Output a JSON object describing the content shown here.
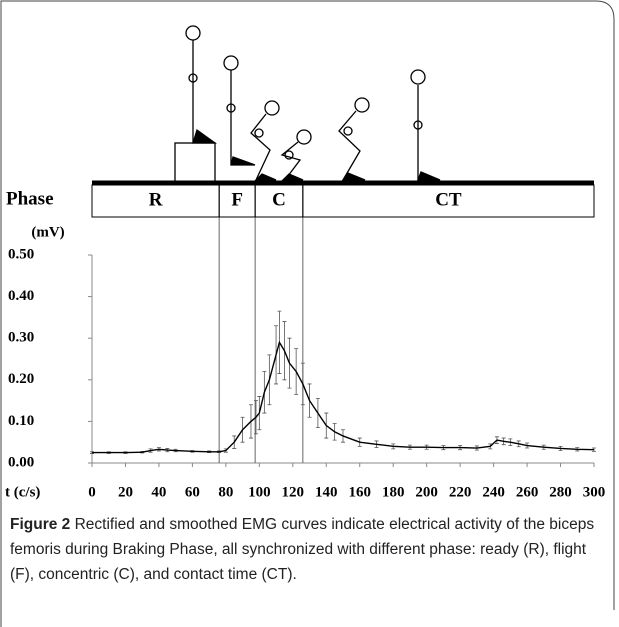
{
  "chart_data": {
    "type": "line",
    "ylabel": "(mV)",
    "xlabel": "t (c/s)",
    "phase_label": "Phase",
    "phases": [
      {
        "label": "R",
        "end": 76
      },
      {
        "label": "F",
        "end": 97.5
      },
      {
        "label": "C",
        "end": 126
      },
      {
        "label": "CT",
        "end": 300
      }
    ],
    "x": [
      0,
      10,
      20,
      30,
      35,
      40,
      45,
      50,
      60,
      70,
      76,
      80,
      85,
      90,
      95,
      98,
      100,
      103,
      106,
      110,
      112,
      115,
      118,
      122,
      126,
      130,
      135,
      140,
      145,
      150,
      160,
      170,
      180,
      190,
      200,
      210,
      220,
      230,
      238,
      242,
      246,
      250,
      255,
      260,
      270,
      280,
      290,
      300
    ],
    "values": [
      0.025,
      0.025,
      0.025,
      0.026,
      0.03,
      0.033,
      0.031,
      0.03,
      0.028,
      0.027,
      0.027,
      0.03,
      0.05,
      0.08,
      0.1,
      0.11,
      0.12,
      0.17,
      0.2,
      0.26,
      0.29,
      0.27,
      0.24,
      0.22,
      0.19,
      0.15,
      0.12,
      0.09,
      0.075,
      0.065,
      0.05,
      0.045,
      0.04,
      0.038,
      0.038,
      0.037,
      0.037,
      0.036,
      0.04,
      0.055,
      0.052,
      0.05,
      0.046,
      0.042,
      0.038,
      0.035,
      0.033,
      0.032
    ],
    "errors": [
      0.002,
      0.002,
      0.002,
      0.002,
      0.004,
      0.004,
      0.004,
      0.003,
      0.002,
      0.002,
      0.002,
      0.004,
      0.015,
      0.03,
      0.04,
      0.04,
      0.04,
      0.05,
      0.06,
      0.07,
      0.075,
      0.07,
      0.06,
      0.055,
      0.05,
      0.04,
      0.035,
      0.03,
      0.02,
      0.015,
      0.01,
      0.008,
      0.006,
      0.005,
      0.005,
      0.005,
      0.005,
      0.005,
      0.006,
      0.008,
      0.008,
      0.008,
      0.007,
      0.006,
      0.005,
      0.005,
      0.004,
      0.004
    ],
    "color": "#000000",
    "xlim": [
      0,
      300
    ],
    "xticks": [
      0,
      20,
      40,
      60,
      80,
      100,
      120,
      140,
      160,
      180,
      200,
      220,
      240,
      260,
      280,
      300
    ],
    "ylim": [
      0,
      0.5
    ],
    "yticks": [
      {
        "value": 0,
        "label": "0.00"
      },
      {
        "value": 0.1,
        "label": "0.10"
      },
      {
        "value": 0.2,
        "label": "0.20"
      },
      {
        "value": 0.3,
        "label": "0.30"
      },
      {
        "value": 0.4,
        "label": "0.40"
      },
      {
        "value": 0.5,
        "label": "0.50"
      }
    ]
  },
  "caption": {
    "label": "Figure 2",
    "text": "Rectified and smoothed EMG curves indicate electrical activity of the biceps femoris during Braking Phase, all synchronized with different phase: ready (R), flight (F), concentric (C), and contact time (CT)."
  }
}
